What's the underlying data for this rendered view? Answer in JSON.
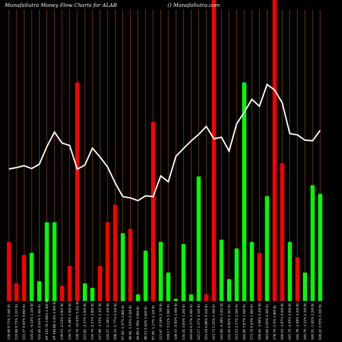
{
  "chart_data": {
    "type": "bar",
    "title": "MunafaSutra  Money Flow  Charts for ALAB",
    "subtitle": "() MunafaSutra.com",
    "colors": {
      "background": "#000000",
      "up": "#00ff00",
      "down": "#ff0000",
      "line": "#ffffff",
      "grid": "#8b4513"
    },
    "categories": [
      "118.90 0.71% 1.0(0 B)",
      "119.96 0.75% 2.2(1 B)",
      "121.37 0.61% 0.8(0 B)",
      "119.21 -0.13% 1.1(0 B)",
      "122.40 2.44% 1.3(0 B)",
      "UP 135.76 3.66% 2.6(0 B)",
      "UP 146.86 2.4% 4.9(0 B)",
      "138.53 -2.12% 2.8(1 B)",
      "136.71 -0.38% 1.6(0 B)",
      "118.76 -10.03% 3.2(1 B)",
      "121.81 -2.17% 1.6(0 B)",
      "134.74 -2.17% 3.8(0 B)",
      "127.98 -3.33% 2.3(1 B)",
      "120.37 -1.16% 1.4(0 B)",
      "108.33 -1.77% 2.1(0 B)",
      "97.92 -2.37% 1.8(0 B)",
      "96.96 -1.52% 2.2(0 B)",
      "94.89 2.78% 3.9(0 B)",
      "98.53 2.22% 1.6(0 B)",
      "97.90 -1.17% 2.1(0 B)",
      "113.67 -0.14% 2.7(0 B)",
      "109.17 3.11% 1.9(0 B)",
      "128.53 -0.91% 2.0(0 B)",
      "134.41 3.83% 1.2(0 B)",
      "140.16 4.37% 2.9(0 B)",
      "145.17 1.37% 2.1(0 B)",
      "151.19 4.98% 5.1(0 B)",
      "141.73 1.25% 1.3(0 B)",
      "142.99 -4.30% 3.0(1 B)",
      "132.44 4.82% 2.3(1 B)",
      "153.10 3.17% 2.2(0 B)",
      "162.00 3.87% 1.0(0 B)",
      "171.74 2.43% 1.9(0 B)",
      "166.44 -2.06% 2.2(0 B)",
      "183.00 2.05% 3.3(0 B)",
      "178.79 -1.5% 1.8(0 B)",
      "169.10 -3.07% 2.0(0 B)",
      "145.70 -2.45% 2.0(0 B)",
      "144.78 -2.04% 3.2(0 B)",
      "140.78 -3.11% 2.1(0 B)",
      "140.31 -1.91% 2.2(0 B)",
      "148.22 3.55% 2.2(0 B)"
    ],
    "volumes": [
      0.27,
      0.08,
      0.21,
      0.22,
      0.09,
      0.36,
      0.36,
      0.07,
      0.16,
      1.0,
      0.08,
      0.06,
      0.16,
      0.36,
      0.44,
      0.31,
      0.33,
      0.03,
      0.23,
      0.82,
      0.27,
      0.13,
      0.01,
      0.26,
      0.03,
      0.57,
      0.03,
      1.64,
      0.28,
      0.1,
      0.24,
      1.0,
      0.27,
      0.22,
      0.48,
      1.43,
      0.63,
      0.27,
      0.2,
      0.13,
      0.53,
      0.49
    ],
    "bar_colors": [
      "down",
      "down",
      "down",
      "up",
      "up",
      "up",
      "up",
      "down",
      "down",
      "down",
      "up",
      "up",
      "down",
      "down",
      "down",
      "up",
      "down",
      "up",
      "up",
      "down",
      "up",
      "up",
      "up",
      "up",
      "up",
      "up",
      "down",
      "down",
      "up",
      "up",
      "up",
      "up",
      "up",
      "down",
      "up",
      "down",
      "down",
      "up",
      "down",
      "up",
      "up",
      "up"
    ],
    "price_line": [
      118.9,
      119.96,
      121.37,
      119.21,
      122.4,
      135.76,
      146.86,
      138.53,
      136.71,
      118.76,
      121.81,
      134.74,
      127.98,
      120.37,
      108.33,
      97.92,
      96.96,
      94.89,
      98.53,
      97.9,
      113.67,
      109.17,
      128.53,
      134.41,
      140.16,
      145.17,
      151.19,
      141.73,
      142.99,
      132.44,
      153.1,
      162.0,
      171.74,
      166.44,
      183.0,
      178.79,
      169.1,
      145.7,
      144.78,
      140.78,
      140.31,
      148.22
    ],
    "grid": true
  }
}
